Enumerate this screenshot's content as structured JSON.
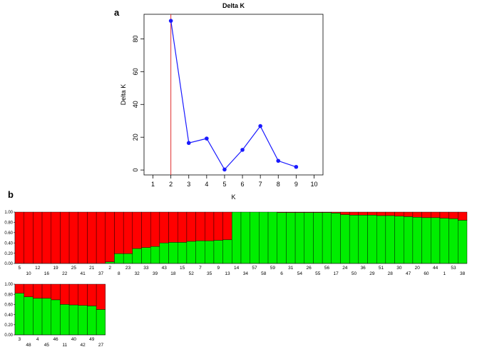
{
  "panel_labels": {
    "a": "a",
    "b": "b"
  },
  "chart_data": [
    {
      "type": "line",
      "title": "Delta K",
      "xlabel": "K",
      "ylabel": "Delta K",
      "xlim": [
        0.5,
        10.5
      ],
      "ylim": [
        -3,
        95
      ],
      "xticks": [
        "1",
        "2",
        "3",
        "4",
        "5",
        "6",
        "7",
        "8",
        "9",
        "10"
      ],
      "yticks": [
        "0",
        "20",
        "40",
        "60",
        "80"
      ],
      "grid": false,
      "x": [
        2,
        3,
        4,
        5,
        6,
        7,
        8,
        9
      ],
      "values": [
        91,
        16.5,
        19.2,
        0.3,
        12.3,
        26.8,
        5.6,
        1.9
      ],
      "line_color": "#1a1aff",
      "marker_color": "#1a1aff",
      "reference_line": {
        "x": 2,
        "color": "#e03030"
      }
    },
    {
      "type": "bar",
      "title": "",
      "yticks": [
        "0.00",
        "0.20",
        "0.40",
        "0.60",
        "0.80",
        "1.00"
      ],
      "ylim": [
        0,
        1
      ],
      "series_colors": {
        "cluster1": "#ff0000",
        "cluster2": "#00ee00"
      },
      "rows": [
        {
          "categories": [
            "5",
            "10",
            "12",
            "16",
            "19",
            "22",
            "25",
            "41",
            "21",
            "37",
            "2",
            "8",
            "23",
            "32",
            "33",
            "39",
            "43",
            "18",
            "15",
            "52",
            "7",
            "35",
            "9",
            "13",
            "14",
            "34",
            "57",
            "58",
            "59",
            "6",
            "31",
            "54",
            "26",
            "55",
            "56",
            "17",
            "24",
            "50",
            "36",
            "29",
            "51",
            "28",
            "30",
            "47",
            "20",
            "60",
            "44",
            "1",
            "53",
            "38"
          ],
          "green": [
            0,
            0,
            0,
            0,
            0,
            0,
            0,
            0,
            0,
            0,
            0.03,
            0.19,
            0.19,
            0.29,
            0.31,
            0.33,
            0.4,
            0.41,
            0.41,
            0.43,
            0.44,
            0.44,
            0.45,
            0.46,
            1.0,
            1.0,
            1.0,
            1.0,
            1.0,
            0.99,
            0.99,
            0.99,
            0.99,
            0.99,
            0.99,
            0.98,
            0.95,
            0.94,
            0.94,
            0.94,
            0.93,
            0.93,
            0.92,
            0.91,
            0.9,
            0.89,
            0.89,
            0.88,
            0.87,
            0.84
          ]
        },
        {
          "categories": [
            "3",
            "48",
            "4",
            "45",
            "46",
            "11",
            "40",
            "42",
            "49",
            "27"
          ],
          "green": [
            0.82,
            0.75,
            0.72,
            0.72,
            0.69,
            0.6,
            0.59,
            0.58,
            0.57,
            0.5
          ]
        }
      ]
    }
  ]
}
